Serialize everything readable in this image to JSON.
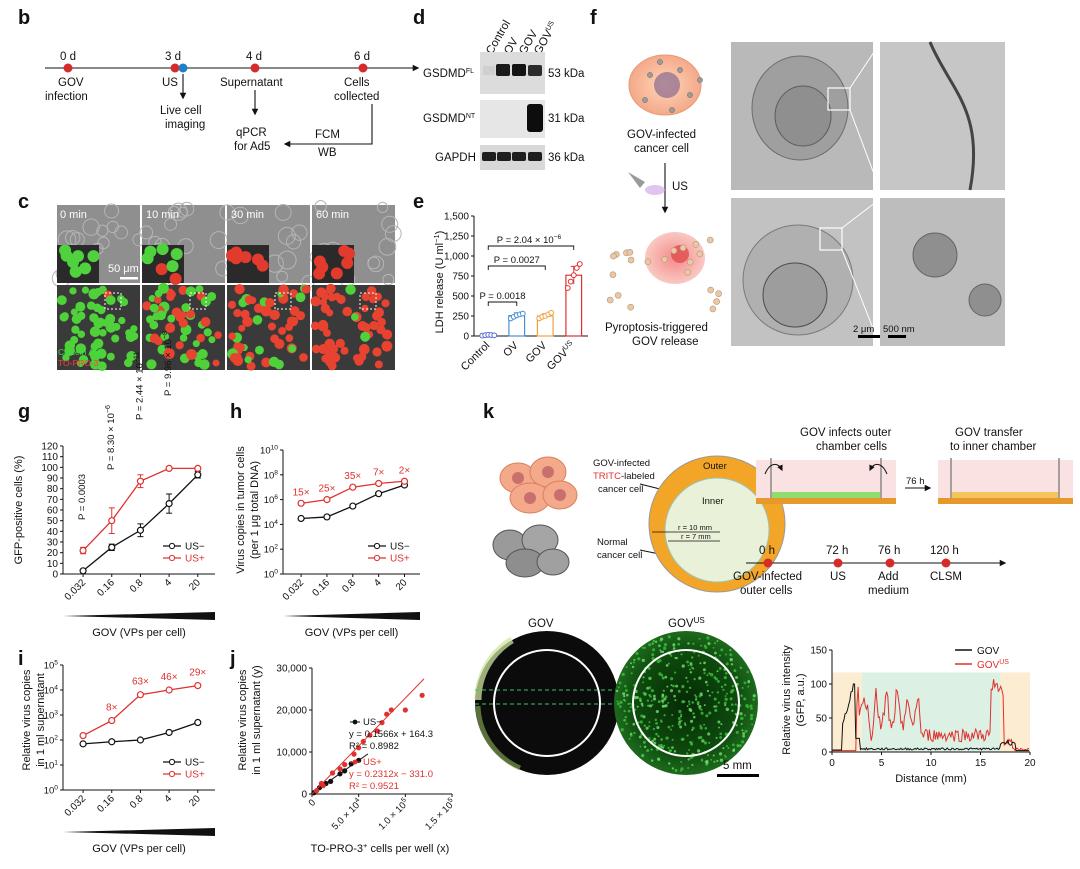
{
  "panels": {
    "b": "b",
    "c": "c",
    "d": "d",
    "e": "e",
    "f": "f",
    "g": "g",
    "h": "h",
    "i": "i",
    "j": "j",
    "k": "k"
  },
  "timeline_b": {
    "days": [
      "0 d",
      "3 d",
      "4 d",
      "6 d"
    ],
    "gov_infection": [
      "GOV",
      "infection"
    ],
    "us": "US",
    "live": [
      "Live cell",
      "imaging"
    ],
    "supernatant": "Supernatant",
    "cells": [
      "Cells",
      "collected"
    ],
    "qpcr": [
      "qPCR",
      "for Ad5"
    ],
    "fcm": [
      "FCM",
      "WB"
    ]
  },
  "panel_c": {
    "times": [
      "0 min",
      "10 min",
      "30 min",
      "60 min"
    ],
    "scale": "50 μm",
    "stain1": "Calcein AM",
    "stain2": "TO-PRO-3"
  },
  "panel_d": {
    "lanes": [
      "Control",
      "OV",
      "GOV",
      "GOV"
    ],
    "lane_sup": "US",
    "rows": [
      {
        "label": "GSDMD",
        "sup": "FL",
        "kda": "53 kDa"
      },
      {
        "label": "GSDMD",
        "sup": "NT",
        "kda": "31 kDa"
      },
      {
        "label": "GAPDH",
        "sup": "",
        "kda": "36 kDa"
      }
    ]
  },
  "panel_f": {
    "infected": [
      "GOV-infected",
      "cancer cell"
    ],
    "us": "US",
    "pyro": [
      "Pyroptosis-triggered",
      "GOV release"
    ],
    "scale1": "2 μm",
    "scale2": "500 nm"
  },
  "chart_data": [
    {
      "panel": "e",
      "type": "bar",
      "categories": [
        "Control",
        "OV",
        "GOV",
        "GOV"
      ],
      "category_sup": [
        "",
        "",
        "",
        "US"
      ],
      "values": [
        10,
        255,
        250,
        760
      ],
      "errors": [
        15,
        35,
        30,
        110
      ],
      "points": [
        [
          5,
          10,
          15,
          12,
          8
        ],
        [
          220,
          240,
          260,
          270,
          280
        ],
        [
          220,
          240,
          250,
          270,
          290
        ],
        [
          600,
          680,
          760,
          850,
          900
        ]
      ],
      "colors": [
        "#5b6bd6",
        "#4a90d9",
        "#f0a13c",
        "#e0312f"
      ],
      "ylabel": "LDH release (U ml",
      "ylabel_sup": "−1",
      "ylabel_end": ")",
      "yticks": [
        "0",
        "250",
        "500",
        "750",
        "1,000",
        "1,250",
        "1,500"
      ],
      "ylim": [
        0,
        1500
      ],
      "brackets": [
        {
          "label": "P = 0.0018",
          "from": 0,
          "to": 1
        },
        {
          "label": "P = 0.0027",
          "from": 0,
          "to": 2
        },
        {
          "label": "P = 2.04 × 10",
          "sup": "−6",
          "from": 0,
          "to": 3
        }
      ]
    },
    {
      "panel": "g",
      "type": "line",
      "x": [
        "0.032",
        "0.16",
        "0.8",
        "4",
        "20"
      ],
      "series": [
        {
          "name": "US−",
          "values": [
            3,
            25,
            41,
            66,
            93
          ],
          "errors": [
            1,
            3,
            6,
            9,
            3
          ],
          "color": "#111111"
        },
        {
          "name": "US+",
          "values": [
            22,
            50,
            87,
            99,
            99
          ],
          "errors": [
            3,
            12,
            6,
            1,
            1
          ],
          "color": "#e0312f"
        }
      ],
      "ylabel": "GFP-positive cells (%)",
      "xlabel": "GOV (VPs per cell)",
      "yticks": [
        "0",
        "10",
        "20",
        "30",
        "40",
        "50",
        "60",
        "70",
        "80",
        "90",
        "100",
        "110",
        "120"
      ],
      "ylim": [
        0,
        120
      ],
      "pvalues": [
        {
          "label": "P = 0.0003"
        },
        {
          "label": "P = 8.30 × 10",
          "sup": "−6"
        },
        {
          "label": "P = 2.44 × 10",
          "sup": "−11"
        },
        {
          "label": "P = 9.96 × 10",
          "sup": "−8"
        }
      ]
    },
    {
      "panel": "h",
      "type": "line",
      "scale": "log",
      "x": [
        "0.032",
        "0.16",
        "0.8",
        "4",
        "20"
      ],
      "series": [
        {
          "name": "US−",
          "values": [
            30000,
            40000,
            300000,
            3000000,
            15000000
          ],
          "color": "#111111"
        },
        {
          "name": "US+",
          "values": [
            500000,
            1000000,
            10000000,
            20000000,
            30000000
          ],
          "color": "#e0312f"
        }
      ],
      "fold_labels": [
        "15×",
        "25×",
        "35×",
        "7×",
        "2×"
      ],
      "ylabel": [
        "Virus copies in tumor cells",
        "(per 1 μg total DNA)"
      ],
      "xlabel": "GOV (VPs per cell)",
      "yticks": [
        "10",
        "10",
        "10",
        "10",
        "10",
        "10"
      ],
      "ytick_exp": [
        "0",
        "2",
        "4",
        "6",
        "8",
        "10"
      ],
      "ylim": [
        1,
        10000000000
      ]
    },
    {
      "panel": "i",
      "type": "line",
      "scale": "log",
      "x": [
        "0.032",
        "0.16",
        "0.8",
        "4",
        "20"
      ],
      "series": [
        {
          "name": "US−",
          "values": [
            70,
            85,
            100,
            200,
            500
          ],
          "color": "#111111"
        },
        {
          "name": "US+",
          "values": [
            150,
            600,
            6500,
            10000,
            15000
          ],
          "color": "#e0312f"
        }
      ],
      "fold_labels": [
        "8×",
        "63×",
        "46×",
        "29×"
      ],
      "ylabel": [
        "Relative virus copies",
        "in 1 ml supernatant"
      ],
      "xlabel": "GOV (VPs per cell)",
      "yticks": [
        "10",
        "10",
        "10",
        "10",
        "10",
        "10"
      ],
      "ytick_exp": [
        "0",
        "1",
        "2",
        "3",
        "4",
        "5"
      ],
      "ylim": [
        1,
        100000
      ]
    },
    {
      "panel": "j",
      "type": "scatter",
      "series": [
        {
          "name": "US−",
          "color": "#111111",
          "fit": {
            "slope": 0.1566,
            "intercept": 164.3
          },
          "points": [
            [
              2000,
              300
            ],
            [
              8000,
              1500
            ],
            [
              15000,
              2500
            ],
            [
              20000,
              3000
            ],
            [
              30000,
              4800
            ],
            [
              35000,
              5500
            ],
            [
              42000,
              7200
            ],
            [
              50000,
              8000
            ]
          ]
        },
        {
          "name": "US+",
          "color": "#e0312f",
          "fit": {
            "slope": 0.2312,
            "intercept": -331.0
          },
          "points": [
            [
              5000,
              800
            ],
            [
              12000,
              2000
            ],
            [
              22000,
              5000
            ],
            [
              35000,
              7000
            ],
            [
              45000,
              9500
            ],
            [
              50000,
              11000
            ],
            [
              55000,
              12500
            ],
            [
              62000,
              14000
            ],
            [
              70000,
              15000
            ],
            [
              75000,
              17000
            ],
            [
              80000,
              19000
            ],
            [
              85000,
              20000
            ],
            [
              100000,
              20000
            ],
            [
              118000,
              23500
            ],
            [
              10000,
              2500
            ],
            [
              30000,
              6000
            ]
          ]
        }
      ],
      "equations": [
        {
          "lines": [
            "US−",
            "y = 0.1566x + 164.3",
            "R² = 0.8982"
          ]
        },
        {
          "lines": [
            "US+",
            "y = 0.2312x − 331.0",
            "R² = 0.9521"
          ]
        }
      ],
      "ylabel": [
        "Relative virus copies",
        "in 1 ml supernatant (y)"
      ],
      "xlabel": "TO-PRO-3",
      "xlabel_sup": "+",
      "xlabel_end": " cells per well (x)",
      "yticks": [
        "0",
        "10,000",
        "20,000",
        "30,000"
      ],
      "xticks": [
        "0",
        "5.0 × 10",
        "1.0 × 10",
        "1.5 × 10"
      ],
      "xtick_exp": [
        "",
        "4",
        "5",
        "5"
      ],
      "xlim": [
        0,
        150000
      ],
      "ylim": [
        0,
        30000
      ]
    },
    {
      "panel": "k",
      "type": "line",
      "x_range": [
        0,
        20
      ],
      "series": [
        {
          "name": "GOV",
          "color": "#111111"
        },
        {
          "name": "GOV",
          "sup": "US",
          "color": "#e0312f"
        }
      ],
      "ylabel": [
        "Relative virus intensity",
        "(GFP, a.u.)"
      ],
      "xlabel": "Distance (mm)",
      "yticks": [
        "0",
        "50",
        "100",
        "150"
      ],
      "xticks": [
        "0",
        "5",
        "10",
        "15",
        "20"
      ],
      "ylim": [
        0,
        150
      ]
    }
  ],
  "panel_k": {
    "labeled": [
      "GOV-infected",
      "TRITC",
      "-labeled",
      "cancer cell"
    ],
    "normal": [
      "Normal",
      "cancer cell"
    ],
    "outer": "Outer",
    "inner": "Inner",
    "r10": "r = 10 mm",
    "r7": "r = 7 mm",
    "infects": [
      "GOV infects outer",
      "chamber cells"
    ],
    "h76": "76 h",
    "transfer": [
      "GOV transfer",
      "to inner chamber"
    ],
    "times": [
      "0 h",
      "72 h",
      "76 h",
      "120 h"
    ],
    "events": [
      [
        "GOV-infected",
        "outer cells"
      ],
      [
        "US"
      ],
      [
        "Add",
        "medium"
      ],
      [
        "CLSM"
      ]
    ],
    "img1": "GOV",
    "img2": "GOV",
    "img2_sup": "US",
    "scale": "5 mm"
  }
}
